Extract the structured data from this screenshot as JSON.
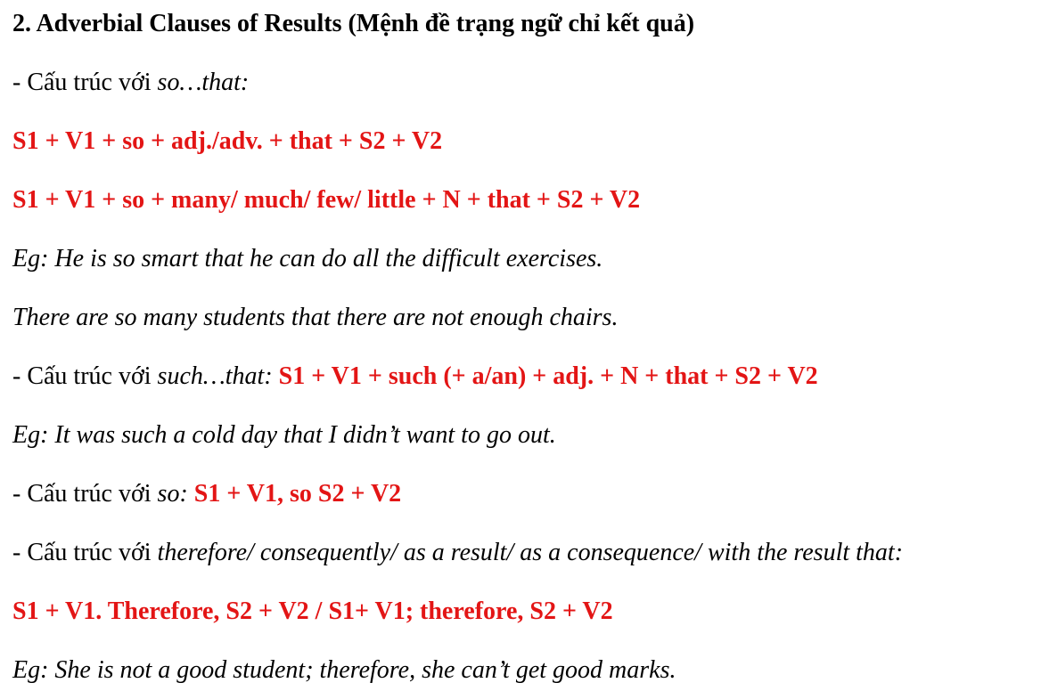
{
  "colors": {
    "formula_red": "#e31515",
    "text": "#000000",
    "background": "#ffffff"
  },
  "document": {
    "heading": "2. Adverbial Clauses of Results (Mệnh đề trạng ngữ chỉ kết quả)",
    "intro_prefix": "- Cấu trúc với ",
    "paragraphs": {
      "p1": {
        "seg1": "2. Adverbial Clauses of Results (Mệnh đề trạng ngữ chỉ kết quả)"
      },
      "p2": {
        "seg1": "- Cấu trúc với ",
        "seg2": "so…that:"
      },
      "p3": {
        "seg1": "S1 + V1 + so + adj./adv. + that + S2 + V2"
      },
      "p4": {
        "seg1": "S1 + V1 + so + many/ much/ few/ little + N + that + S2 + V2"
      },
      "p5": {
        "seg1": "Eg: He is so smart that he can do all the difficult exercises."
      },
      "p6": {
        "seg1": "There are so many students that there are not enough chairs."
      },
      "p7": {
        "seg1": "- Cấu trúc với ",
        "seg2": "such…that: ",
        "seg3": "S1 + V1 + such (+ a/an) + adj. + N + that + S2 + V2"
      },
      "p8": {
        "seg1": "Eg: It was such a cold day that I didn’t want to go out."
      },
      "p9": {
        "seg1": "- Cấu trúc với ",
        "seg2": "so: ",
        "seg3": "S1 + V1, so S2 + V2"
      },
      "p10": {
        "seg1": "- Cấu trúc với ",
        "seg2": "therefore/ consequently/ as a result/ as a consequence/ with the result that:"
      },
      "p11": {
        "seg1": "S1 + V1. Therefore, S2 + V2 / S1+ V1; therefore, S2 + V2"
      },
      "p12": {
        "seg1": "Eg: She is not a good student; therefore, she can’t get good marks."
      }
    }
  }
}
